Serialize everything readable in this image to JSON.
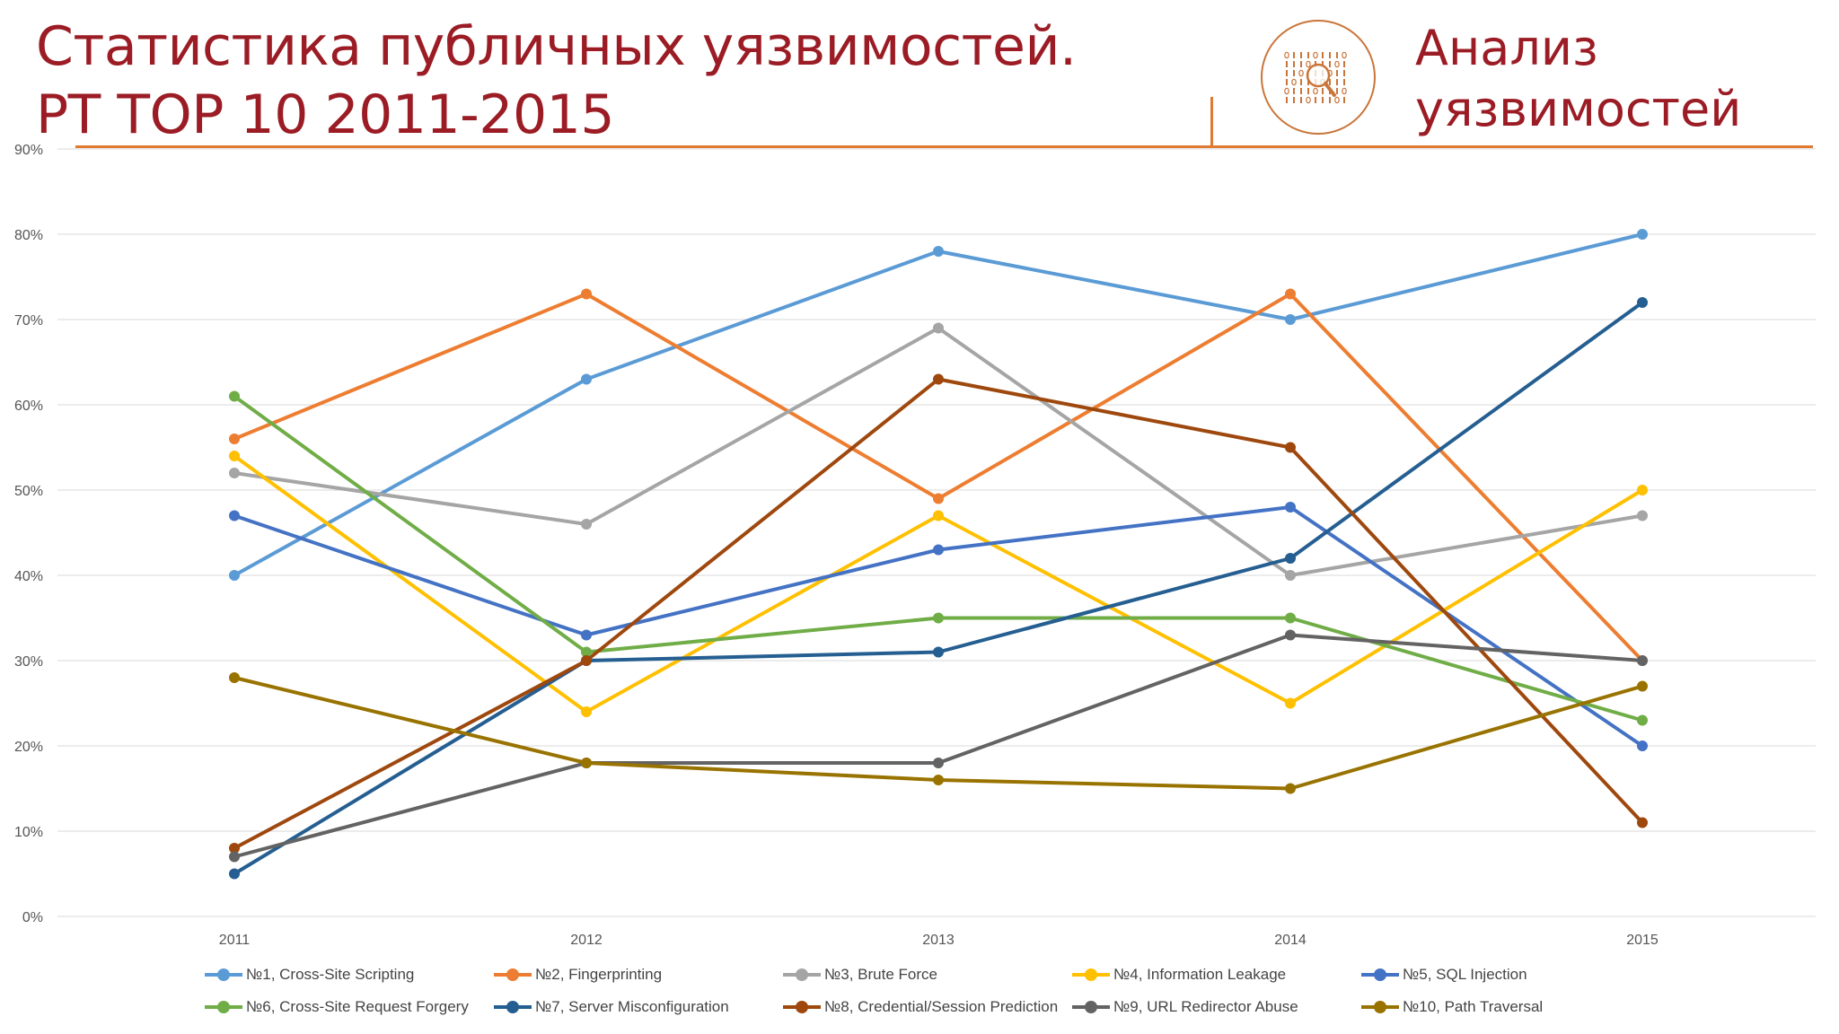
{
  "header": {
    "title_line1": "Статистика публичных уязвимостей.",
    "title_line2": "PT TOP 10 2011-2015",
    "section_line1": "Анализ",
    "section_line2": "уязвимостей",
    "accent_color": "#9b1c24",
    "rule_color": "#e07a32",
    "logo_icon": "binary-magnifier-icon"
  },
  "chart_data": {
    "type": "line",
    "title": "",
    "xlabel": "",
    "ylabel": "",
    "categories": [
      "2011",
      "2012",
      "2013",
      "2014",
      "2015"
    ],
    "y_ticks": [
      "0%",
      "10%",
      "20%",
      "30%",
      "40%",
      "50%",
      "60%",
      "70%",
      "80%",
      "90%"
    ],
    "ylim": [
      0,
      90
    ],
    "grid": true,
    "legend_position": "bottom",
    "series": [
      {
        "name": "№1, Cross-Site Scripting",
        "color": "#5b9bd5",
        "values": [
          40,
          63,
          78,
          70,
          80
        ]
      },
      {
        "name": "№2, Fingerprinting",
        "color": "#ed7d31",
        "values": [
          56,
          73,
          49,
          73,
          30
        ]
      },
      {
        "name": "№3, Brute Force",
        "color": "#a5a5a5",
        "values": [
          52,
          46,
          69,
          40,
          47
        ]
      },
      {
        "name": "№4, Information Leakage",
        "color": "#ffc000",
        "values": [
          54,
          24,
          47,
          25,
          50
        ]
      },
      {
        "name": "№5, SQL Injection",
        "color": "#4472c4",
        "values": [
          47,
          33,
          43,
          48,
          20
        ]
      },
      {
        "name": "№6, Cross-Site Request Forgery",
        "color": "#70ad47",
        "values": [
          61,
          31,
          35,
          35,
          23
        ]
      },
      {
        "name": "№7, Server Misconfiguration",
        "color": "#255e91",
        "values": [
          5,
          30,
          31,
          42,
          72
        ]
      },
      {
        "name": "№8, Credential/Session Prediction",
        "color": "#9e480e",
        "values": [
          8,
          30,
          63,
          55,
          11
        ]
      },
      {
        "name": "№9, URL Redirector Abuse",
        "color": "#636363",
        "values": [
          7,
          18,
          18,
          33,
          30
        ]
      },
      {
        "name": "№10, Path Traversal",
        "color": "#997300",
        "values": [
          28,
          18,
          16,
          15,
          27
        ]
      }
    ]
  }
}
